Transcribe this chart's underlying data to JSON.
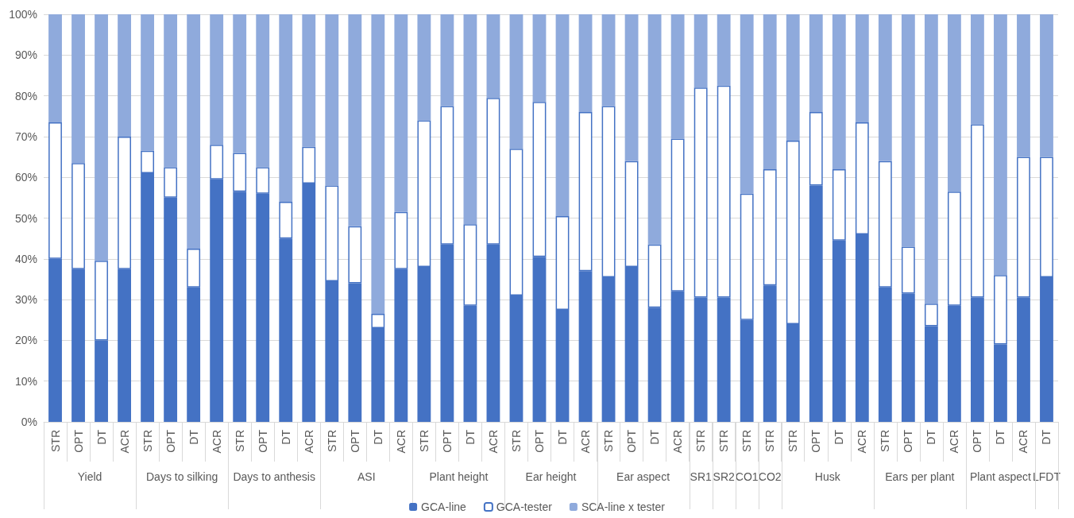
{
  "chart_data": {
    "type": "bar",
    "stacked": true,
    "categories": [
      "STR",
      "OPT",
      "DT",
      "ACR",
      "STR",
      "OPT",
      "DT",
      "ACR",
      "STR",
      "OPT",
      "DT",
      "ACR",
      "STR",
      "OPT",
      "DT",
      "ACR",
      "STR",
      "OPT",
      "DT",
      "ACR",
      "STR",
      "OPT",
      "DT",
      "ACR",
      "STR",
      "OPT",
      "DT",
      "ACR",
      "STR",
      "STR",
      "STR",
      "STR",
      "STR",
      "OPT",
      "DT",
      "ACR",
      "STR",
      "OPT",
      "DT",
      "ACR",
      "OPT",
      "DT",
      "ACR",
      "DT"
    ],
    "series": [
      {
        "name": "GCA-line",
        "color": "#4472c4",
        "values": [
          40,
          37.5,
          20,
          37.5,
          61,
          55,
          33,
          59.5,
          56.5,
          56,
          45,
          58.5,
          34.5,
          34,
          23,
          37.5,
          38,
          43.5,
          28.5,
          43.5,
          31,
          40.5,
          27.5,
          37,
          35.5,
          38,
          28,
          32,
          30.5,
          30.5,
          25,
          33.5,
          24,
          58,
          44.5,
          46,
          33,
          31.5,
          23.5,
          28.5,
          30.5,
          19,
          30.5,
          35.5
        ]
      },
      {
        "name": "GCA-tester",
        "color": "#ffffff",
        "values": [
          33.5,
          26,
          19.5,
          32.5,
          5.5,
          7.5,
          9.5,
          8.5,
          9.5,
          6.5,
          9,
          9,
          23.5,
          14,
          3.5,
          14,
          36,
          34,
          20,
          36,
          36,
          38,
          23,
          39,
          42,
          26,
          15.5,
          37.5,
          51.5,
          52,
          31,
          28.5,
          45,
          18,
          17.5,
          27.5,
          31,
          11.5,
          5.5,
          28,
          42.5,
          17,
          34.5,
          29.5
        ]
      },
      {
        "name": "SCA-line x tester",
        "color": "#8faadc",
        "values": [
          26.5,
          36.5,
          60.5,
          30,
          33.5,
          37.5,
          57.5,
          32,
          34,
          37.5,
          46,
          32.5,
          42,
          52,
          73.5,
          48.5,
          26,
          22.5,
          51.5,
          20.5,
          33,
          21.5,
          49.5,
          24,
          22.5,
          36,
          56.5,
          30.5,
          18,
          17.5,
          44,
          38,
          31,
          24,
          38,
          26.5,
          36,
          57,
          71,
          43.5,
          27,
          64,
          35,
          35
        ]
      }
    ],
    "ylim": [
      0,
      100
    ],
    "yticks": [
      {
        "value": 0,
        "label": "0%"
      },
      {
        "value": 10,
        "label": "10%"
      },
      {
        "value": 20,
        "label": "20%"
      },
      {
        "value": 30,
        "label": "30%"
      },
      {
        "value": 40,
        "label": "40%"
      },
      {
        "value": 50,
        "label": "50%"
      },
      {
        "value": 60,
        "label": "60%"
      },
      {
        "value": 70,
        "label": "70%"
      },
      {
        "value": 80,
        "label": "80%"
      },
      {
        "value": 90,
        "label": "90%"
      },
      {
        "value": 100,
        "label": "100%"
      }
    ],
    "grid": true,
    "legend": "bottom",
    "annotations": [
      "Yield",
      "Days to silking",
      "Days to anthesis",
      "ASI",
      "Plant height",
      "Ear height",
      "Ear aspect",
      "SR1",
      "SR2",
      "CO1",
      "CO2",
      "Husk",
      "Ears per plant",
      "Plant aspect",
      "LFDT"
    ]
  }
}
